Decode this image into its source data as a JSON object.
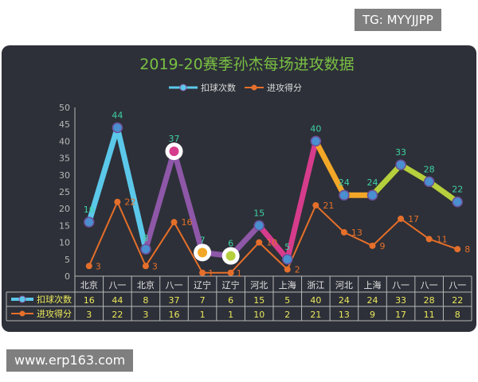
{
  "watermarks": {
    "top": "TG: MYYJJPP",
    "bottom": "www.erp163.com"
  },
  "chart_data": {
    "type": "line",
    "title": "2019-20赛季孙杰每场进攻数据",
    "categories": [
      "北京",
      "八一",
      "北京",
      "八一",
      "辽宁",
      "辽宁",
      "河北",
      "上海",
      "浙江",
      "河北",
      "上海",
      "八一",
      "八一",
      "八一"
    ],
    "series": [
      {
        "name": "扣球次数",
        "values": [
          16,
          44,
          8,
          37,
          7,
          6,
          15,
          5,
          40,
          24,
          24,
          33,
          28,
          22
        ],
        "segment_colors": [
          "#5bc8ea",
          "#5bc8ea",
          "#8e57a8",
          "#8e57a8",
          "#8e57a8",
          "#8e57a8",
          "#d63c8c",
          "#d63c8c",
          "#f3a727",
          "#f3a727",
          "#b6cf3c",
          "#b6cf3c",
          "#b6cf3c"
        ],
        "label_color": "#3fd2a4"
      },
      {
        "name": "进攻得分",
        "values": [
          3,
          22,
          3,
          16,
          1,
          1,
          10,
          2,
          21,
          13,
          9,
          17,
          11,
          8
        ],
        "color": "#e56f2a"
      }
    ],
    "ylim": [
      0,
      50
    ],
    "yticks": [
      0,
      5,
      10,
      15,
      20,
      25,
      30,
      35,
      40,
      45,
      50
    ],
    "legend_position": "top-center",
    "grid": false,
    "data_table": true,
    "highlighted_points": [
      3,
      4,
      5
    ]
  },
  "colors": {
    "panel": "#2d3038",
    "title": "#79c043",
    "axis": "#b8b8b8",
    "table_text": "#e6e6e6",
    "table_values": "#ece85c",
    "highlight_ring": "#ffffff"
  }
}
